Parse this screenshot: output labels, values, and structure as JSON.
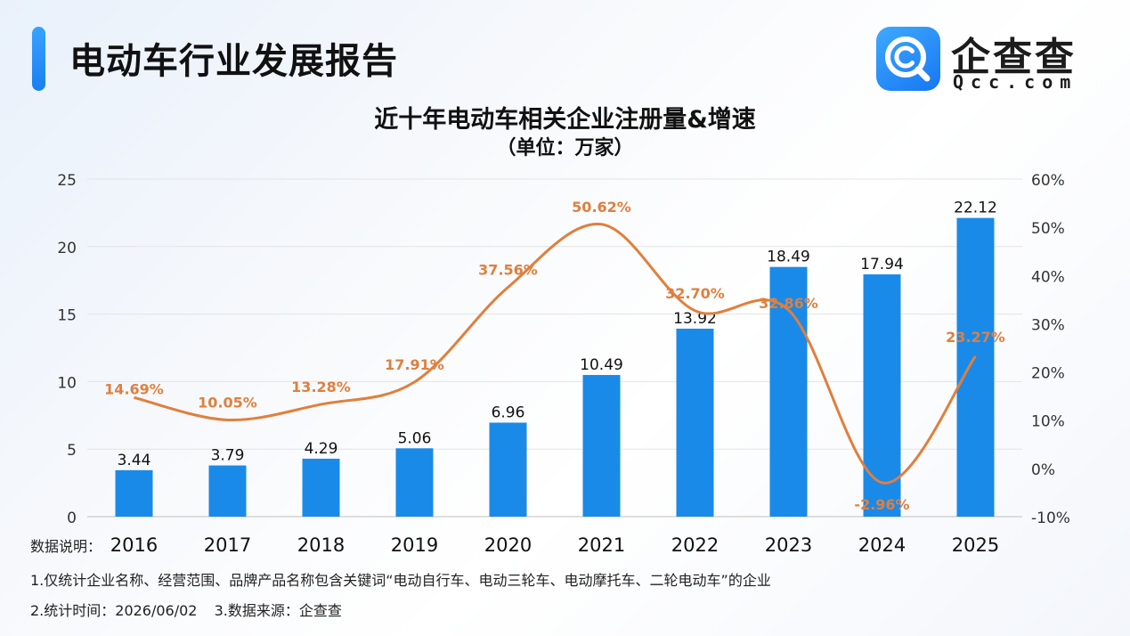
{
  "header": {
    "report_title": "电动车行业发展报告",
    "accent_color": "#2b8ff5"
  },
  "logo": {
    "name": "企查查",
    "domain": "Qcc.com",
    "icon": "qcc-magnifier-icon",
    "color": "#1a7ff0"
  },
  "chart_data": {
    "type": "bar+line",
    "title": "近十年电动车相关企业注册量&增速",
    "subtitle": "（单位：万家）",
    "categories": [
      "2016",
      "2017",
      "2018",
      "2019",
      "2020",
      "2021",
      "2022",
      "2023",
      "2024",
      "2025"
    ],
    "series": [
      {
        "type": "bar",
        "axis": "left",
        "color": "#1a8ae8",
        "values": [
          3.44,
          3.79,
          4.29,
          5.06,
          6.96,
          10.49,
          13.92,
          18.49,
          17.94,
          22.12
        ],
        "labels": [
          "3.44",
          "3.79",
          "4.29",
          "5.06",
          "6.96",
          "10.49",
          "13.92",
          "18.49",
          "17.94",
          "22.12"
        ]
      },
      {
        "type": "line",
        "axis": "right",
        "smooth": true,
        "color": "#e07f3d",
        "values": [
          14.69,
          10.05,
          13.28,
          17.91,
          37.56,
          50.62,
          32.7,
          32.86,
          -2.96,
          23.27
        ],
        "labels": [
          "14.69%",
          "10.05%",
          "13.28%",
          "17.91%",
          "37.56%",
          "50.62%",
          "32.70%",
          "32.86%",
          "-2.96%",
          "23.27%"
        ]
      }
    ],
    "y_left": {
      "min": 0,
      "max": 25,
      "ticks": [
        "0",
        "5",
        "10",
        "15",
        "20",
        "25"
      ]
    },
    "y_right": {
      "min": -10,
      "max": 60,
      "ticks": [
        "-10%",
        "0%",
        "10%",
        "20%",
        "30%",
        "40%",
        "50%",
        "60%"
      ]
    },
    "grid": true,
    "legend": "none"
  },
  "notes": {
    "heading": "数据说明：",
    "line1": "1.仅统计企业名称、经营范围、品牌产品名称包含关键词“电动自行车、电动三轮车、电动摩托车、二轮电动车”的企业",
    "line2_a": "2.统计时间：2026/06/02",
    "line2_b": "3.数据来源：企查查"
  }
}
